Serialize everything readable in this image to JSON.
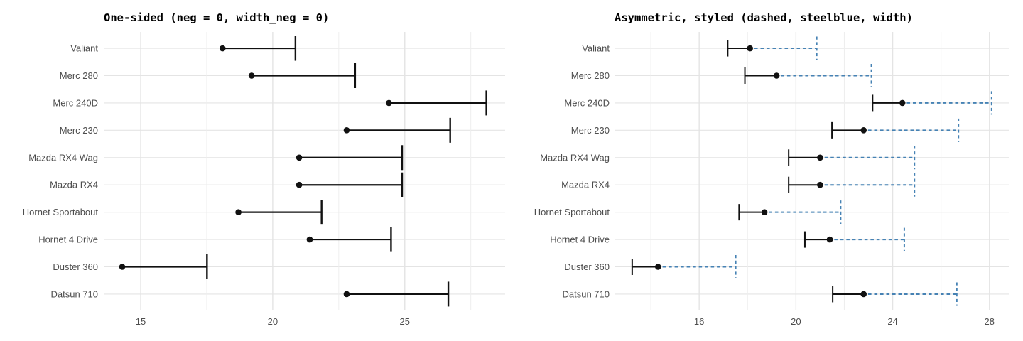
{
  "page": {
    "background": "#ffffff",
    "figure_kind": "two horizontal dot-and-errorbar panels (mtcars mpg)"
  },
  "chart_data": [
    {
      "type": "scatter",
      "subtype": "horizontal-errorbar-one-sided",
      "title": "One-sided (neg = 0, width_neg = 0)",
      "categories": [
        "Valiant",
        "Merc 280",
        "Merc 240D",
        "Merc 230",
        "Mazda RX4 Wag",
        "Mazda RX4",
        "Hornet Sportabout",
        "Hornet 4 Drive",
        "Duster 360",
        "Datsun 710"
      ],
      "series": [
        {
          "name": "estimate",
          "values": [
            18.1,
            19.2,
            24.4,
            22.8,
            21.0,
            21.0,
            18.7,
            21.4,
            14.3,
            22.8
          ]
        },
        {
          "name": "lower",
          "values": [
            18.1,
            19.2,
            24.4,
            22.8,
            21.0,
            21.0,
            18.7,
            21.4,
            14.3,
            22.8
          ]
        },
        {
          "name": "upper",
          "values": [
            20.86,
            23.12,
            28.09,
            26.72,
            24.9,
            24.9,
            21.85,
            24.48,
            17.51,
            26.65
          ]
        }
      ],
      "xlabel": "",
      "ylabel": "",
      "xlim": [
        13.6,
        28.8
      ],
      "x_ticks": [
        15,
        20,
        25
      ],
      "x_gridlines": [
        15,
        17.5,
        20,
        22.5,
        25,
        27.5
      ],
      "grid": true,
      "legend": false,
      "colors": {
        "bar": "#111111",
        "point": "#111111",
        "grid_major": "#e4e4e4",
        "grid_minor": "#eeeeee",
        "axis_text": "#4d4d4d"
      },
      "style": {
        "pos_dashed": false,
        "neg_cap": false,
        "pos_cap_half": 17.5,
        "line_width": 2.2,
        "point_radius": 4.3
      }
    },
    {
      "type": "scatter",
      "subtype": "horizontal-errorbar-asymmetric",
      "title": "Asymmetric, styled (dashed, steelblue, width)",
      "categories": [
        "Valiant",
        "Merc 280",
        "Merc 240D",
        "Merc 230",
        "Mazda RX4 Wag",
        "Mazda RX4",
        "Hornet Sportabout",
        "Hornet 4 Drive",
        "Duster 360",
        "Datsun 710"
      ],
      "series": [
        {
          "name": "estimate",
          "values": [
            18.1,
            19.2,
            24.4,
            22.8,
            21.0,
            21.0,
            18.7,
            21.4,
            14.3,
            22.8
          ]
        },
        {
          "name": "lower",
          "values": [
            17.18,
            17.89,
            23.17,
            21.49,
            19.7,
            19.7,
            17.65,
            20.37,
            13.23,
            21.52
          ]
        },
        {
          "name": "upper",
          "values": [
            20.86,
            23.12,
            28.09,
            26.72,
            24.9,
            24.9,
            21.85,
            24.48,
            17.51,
            26.65
          ]
        }
      ],
      "xlabel": "",
      "ylabel": "",
      "xlim": [
        12.5,
        28.8
      ],
      "x_ticks": [
        16,
        20,
        24,
        28
      ],
      "x_gridlines": [
        14,
        16,
        18,
        20,
        22,
        24,
        26,
        28
      ],
      "grid": true,
      "legend": false,
      "colors": {
        "neg_bar": "#111111",
        "pos_bar": "#4682B4",
        "point": "#111111",
        "grid_major": "#e4e4e4",
        "grid_minor": "#eeeeee",
        "axis_text": "#4d4d4d"
      },
      "style": {
        "pos_dashed": true,
        "neg_cap": true,
        "neg_cap_half": 11.5,
        "pos_cap_half": 16.5,
        "line_width": 2.0,
        "point_radius": 4.3
      }
    }
  ]
}
